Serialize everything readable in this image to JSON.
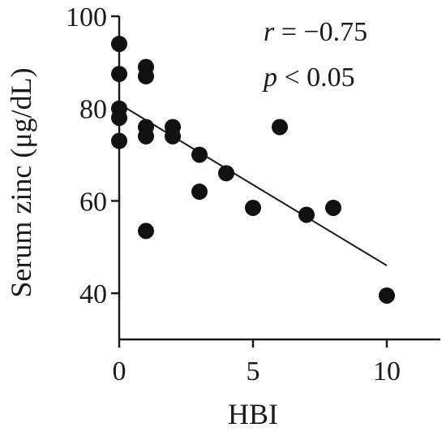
{
  "chart_data": {
    "type": "scatter",
    "xlabel": "HBI",
    "ylabel": "Serum zinc (μg/dL)",
    "xlim": [
      0,
      12
    ],
    "ylim": [
      30,
      100
    ],
    "xticks": [
      0,
      5,
      10
    ],
    "yticks": [
      40,
      60,
      80,
      100
    ],
    "grid": false,
    "annotations": {
      "r_symbol": "r",
      "r_value": " = −0.75",
      "p_symbol": "p",
      "p_value": " < 0.05"
    },
    "points": [
      {
        "x": 0,
        "y": 94
      },
      {
        "x": 0,
        "y": 87.5
      },
      {
        "x": 0,
        "y": 80
      },
      {
        "x": 0,
        "y": 78
      },
      {
        "x": 0,
        "y": 73
      },
      {
        "x": 1,
        "y": 89
      },
      {
        "x": 1,
        "y": 87
      },
      {
        "x": 1,
        "y": 76
      },
      {
        "x": 1,
        "y": 74
      },
      {
        "x": 1,
        "y": 53.5
      },
      {
        "x": 2,
        "y": 76
      },
      {
        "x": 2,
        "y": 74
      },
      {
        "x": 3,
        "y": 70
      },
      {
        "x": 3,
        "y": 62
      },
      {
        "x": 4,
        "y": 66
      },
      {
        "x": 5,
        "y": 58.5
      },
      {
        "x": 6,
        "y": 76
      },
      {
        "x": 7,
        "y": 57
      },
      {
        "x": 8,
        "y": 58.5
      },
      {
        "x": 10,
        "y": 39.5
      }
    ],
    "trendline": {
      "x": [
        0,
        10
      ],
      "y": [
        81,
        46
      ]
    }
  }
}
